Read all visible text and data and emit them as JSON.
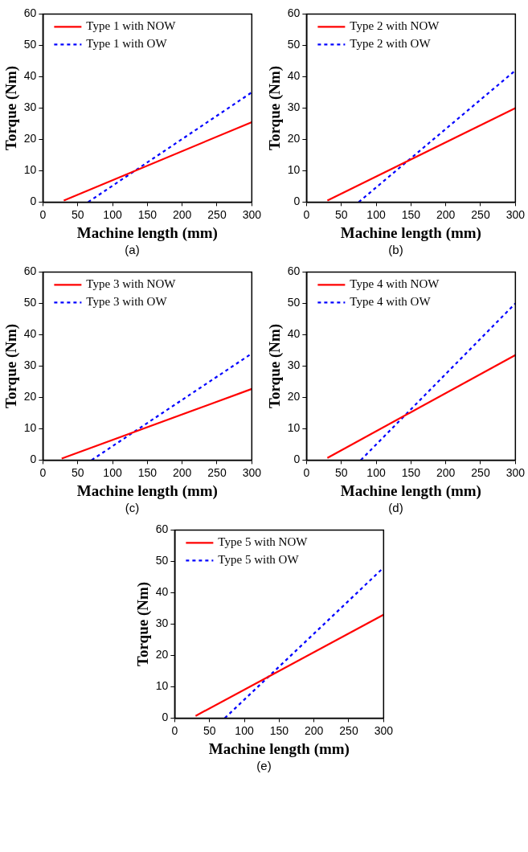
{
  "chart_data": [
    {
      "type": "line",
      "xlabel": "Machine length (mm)",
      "ylabel": "Torque (Nm)",
      "xlim": [
        0,
        300
      ],
      "xticks": [
        0,
        50,
        100,
        150,
        200,
        250,
        300
      ],
      "ylim": [
        0,
        60
      ],
      "yticks": [
        0,
        10,
        20,
        30,
        40,
        50,
        60
      ],
      "grid": false,
      "legend": "top left",
      "annotations": [
        "(a)"
      ],
      "series": [
        {
          "name": "Type 1 with NOW",
          "color": "#ff0000",
          "line_style": "solid",
          "x": [
            30,
            300
          ],
          "values": [
            0.5,
            25.5
          ]
        },
        {
          "name": "Type 1 with OW",
          "color": "#0000ff",
          "line_style": "dashed",
          "x": [
            65,
            300
          ],
          "values": [
            0,
            35
          ]
        }
      ]
    },
    {
      "type": "line",
      "xlabel": "Machine length (mm)",
      "ylabel": "Torque (Nm)",
      "xlim": [
        0,
        300
      ],
      "xticks": [
        0,
        50,
        100,
        150,
        200,
        250,
        300
      ],
      "ylim": [
        0,
        60
      ],
      "yticks": [
        0,
        10,
        20,
        30,
        40,
        50,
        60
      ],
      "grid": false,
      "legend": "top left",
      "annotations": [
        "(b)"
      ],
      "series": [
        {
          "name": "Type 2 with NOW",
          "color": "#ff0000",
          "line_style": "solid",
          "x": [
            30,
            300
          ],
          "values": [
            0.5,
            30
          ]
        },
        {
          "name": "Type 2 with OW",
          "color": "#0000ff",
          "line_style": "dashed",
          "x": [
            75,
            300
          ],
          "values": [
            0,
            42
          ]
        }
      ]
    },
    {
      "type": "line",
      "xlabel": "Machine length (mm)",
      "ylabel": "Torque (Nm)",
      "xlim": [
        0,
        300
      ],
      "xticks": [
        0,
        50,
        100,
        150,
        200,
        250,
        300
      ],
      "ylim": [
        0,
        60
      ],
      "yticks": [
        0,
        10,
        20,
        30,
        40,
        50,
        60
      ],
      "grid": false,
      "legend": "top left",
      "annotations": [
        "(c)"
      ],
      "series": [
        {
          "name": "Type 3 with NOW",
          "color": "#ff0000",
          "line_style": "solid",
          "x": [
            27,
            300
          ],
          "values": [
            0.5,
            22.7
          ]
        },
        {
          "name": "Type 3 with OW",
          "color": "#0000ff",
          "line_style": "dashed",
          "x": [
            70,
            300
          ],
          "values": [
            0,
            34
          ]
        }
      ]
    },
    {
      "type": "line",
      "xlabel": "Machine length (mm)",
      "ylabel": "Torque (Nm)",
      "xlim": [
        0,
        300
      ],
      "xticks": [
        0,
        50,
        100,
        150,
        200,
        250,
        300
      ],
      "ylim": [
        0,
        60
      ],
      "yticks": [
        0,
        10,
        20,
        30,
        40,
        50,
        60
      ],
      "grid": false,
      "legend": "top left",
      "annotations": [
        "(d)"
      ],
      "series": [
        {
          "name": "Type 4 with NOW",
          "color": "#ff0000",
          "line_style": "solid",
          "x": [
            30,
            300
          ],
          "values": [
            0.7,
            33.5
          ]
        },
        {
          "name": "Type 4 with OW",
          "color": "#0000ff",
          "line_style": "dashed",
          "x": [
            78,
            300
          ],
          "values": [
            0,
            50
          ]
        }
      ]
    },
    {
      "type": "line",
      "xlabel": "Machine length (mm)",
      "ylabel": "Torque (Nm)",
      "xlim": [
        0,
        300
      ],
      "xticks": [
        0,
        50,
        100,
        150,
        200,
        250,
        300
      ],
      "ylim": [
        0,
        60
      ],
      "yticks": [
        0,
        10,
        20,
        30,
        40,
        50,
        60
      ],
      "grid": false,
      "legend": "top left",
      "annotations": [
        "(e)"
      ],
      "series": [
        {
          "name": "Type 5 with NOW",
          "color": "#ff0000",
          "line_style": "solid",
          "x": [
            30,
            300
          ],
          "values": [
            0.7,
            33
          ]
        },
        {
          "name": "Type 5 with OW",
          "color": "#0000ff",
          "line_style": "dashed",
          "x": [
            72,
            300
          ],
          "values": [
            0,
            48
          ]
        }
      ]
    }
  ]
}
